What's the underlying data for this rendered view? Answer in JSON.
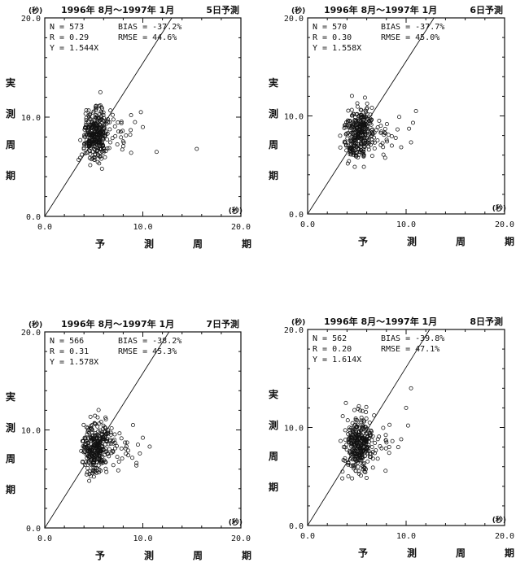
{
  "chart_data": [
    {
      "type": "scatter",
      "title": "1996年 8月〜1997年 1月",
      "panel_label": "5日予測",
      "unit": "(秒)",
      "xlabel": [
        "予",
        "測",
        "周",
        "期"
      ],
      "ylabel": [
        "実",
        "測",
        "周",
        "期"
      ],
      "xlim": [
        0,
        20
      ],
      "ylim": [
        0,
        20
      ],
      "xticks": [
        "0.0",
        "10.0",
        "20.0"
      ],
      "yticks": [
        "0.0",
        "10.0",
        "20.0"
      ],
      "stats": {
        "n": "N = 573",
        "r": "R = 0.29",
        "y": "Y = 1.544X",
        "bias": "BIAS = -37.2%",
        "rmse": "RMSE = 44.6%"
      },
      "regression_slope": 1.544,
      "n_points": 573,
      "outliers": [
        [
          9.2,
          9.5
        ],
        [
          10.0,
          9.0
        ],
        [
          11.4,
          6.5
        ],
        [
          15.5,
          6.8
        ],
        [
          8.8,
          10.2
        ],
        [
          9.8,
          10.5
        ]
      ]
    },
    {
      "type": "scatter",
      "title": "1996年 8月〜1997年 1月",
      "panel_label": "6日予測",
      "unit": "(秒)",
      "xlabel": [
        "予",
        "測",
        "周",
        "期"
      ],
      "ylabel": [
        "実",
        "測",
        "周",
        "期"
      ],
      "xlim": [
        0,
        20
      ],
      "ylim": [
        0,
        20
      ],
      "xticks": [
        "0.0",
        "10.0",
        "20.0"
      ],
      "yticks": [
        "0.0",
        "10.0",
        "20.0"
      ],
      "stats": {
        "n": "N = 570",
        "r": "R = 0.30",
        "y": "Y = 1.558X",
        "bias": "BIAS = -37.7%",
        "rmse": "RMSE = 45.0%"
      },
      "regression_slope": 1.558,
      "n_points": 570,
      "outliers": [
        [
          9.5,
          6.8
        ],
        [
          10.5,
          7.3
        ],
        [
          11.0,
          10.5
        ],
        [
          10.7,
          9.3
        ],
        [
          9.3,
          9.9
        ],
        [
          10.3,
          8.7
        ]
      ]
    },
    {
      "type": "scatter",
      "title": "1996年 8月〜1997年 1月",
      "panel_label": "7日予測",
      "unit": "(秒)",
      "xlabel": [
        "予",
        "測",
        "周",
        "期"
      ],
      "ylabel": [
        "実",
        "測",
        "周",
        "期"
      ],
      "xlim": [
        0,
        20
      ],
      "ylim": [
        0,
        20
      ],
      "xticks": [
        "0.0",
        "10.0",
        "20.0"
      ],
      "yticks": [
        "0.0",
        "10.0",
        "20.0"
      ],
      "stats": {
        "n": "N = 566",
        "r": "R = 0.31",
        "y": "Y = 1.578X",
        "bias": "BIAS = -38.2%",
        "rmse": "RMSE = 45.3%"
      },
      "regression_slope": 1.578,
      "n_points": 566,
      "outliers": [
        [
          9.5,
          8.5
        ],
        [
          9.0,
          10.5
        ],
        [
          10.0,
          9.2
        ],
        [
          9.7,
          7.6
        ],
        [
          10.7,
          8.3
        ]
      ]
    },
    {
      "type": "scatter",
      "title": "1996年 8月〜1997年 1月",
      "panel_label": "8日予測",
      "unit": "(秒)",
      "xlabel": [
        "予",
        "測",
        "周",
        "期"
      ],
      "ylabel": [
        "実",
        "測",
        "周",
        "期"
      ],
      "xlim": [
        0,
        20
      ],
      "ylim": [
        0,
        20
      ],
      "xticks": [
        "0.0",
        "10.0",
        "20.0"
      ],
      "yticks": [
        "0.0",
        "10.0",
        "20.0"
      ],
      "stats": {
        "n": "N = 562",
        "r": "R = 0.20",
        "y": "Y = 1.614X",
        "bias": "BIAS = -39.8%",
        "rmse": "RMSE = 47.1%"
      },
      "regression_slope": 1.614,
      "n_points": 562,
      "outliers": [
        [
          9.2,
          8.0
        ],
        [
          10.0,
          12.0
        ],
        [
          10.5,
          14.0
        ],
        [
          9.5,
          8.8
        ],
        [
          10.2,
          10.2
        ]
      ]
    }
  ]
}
